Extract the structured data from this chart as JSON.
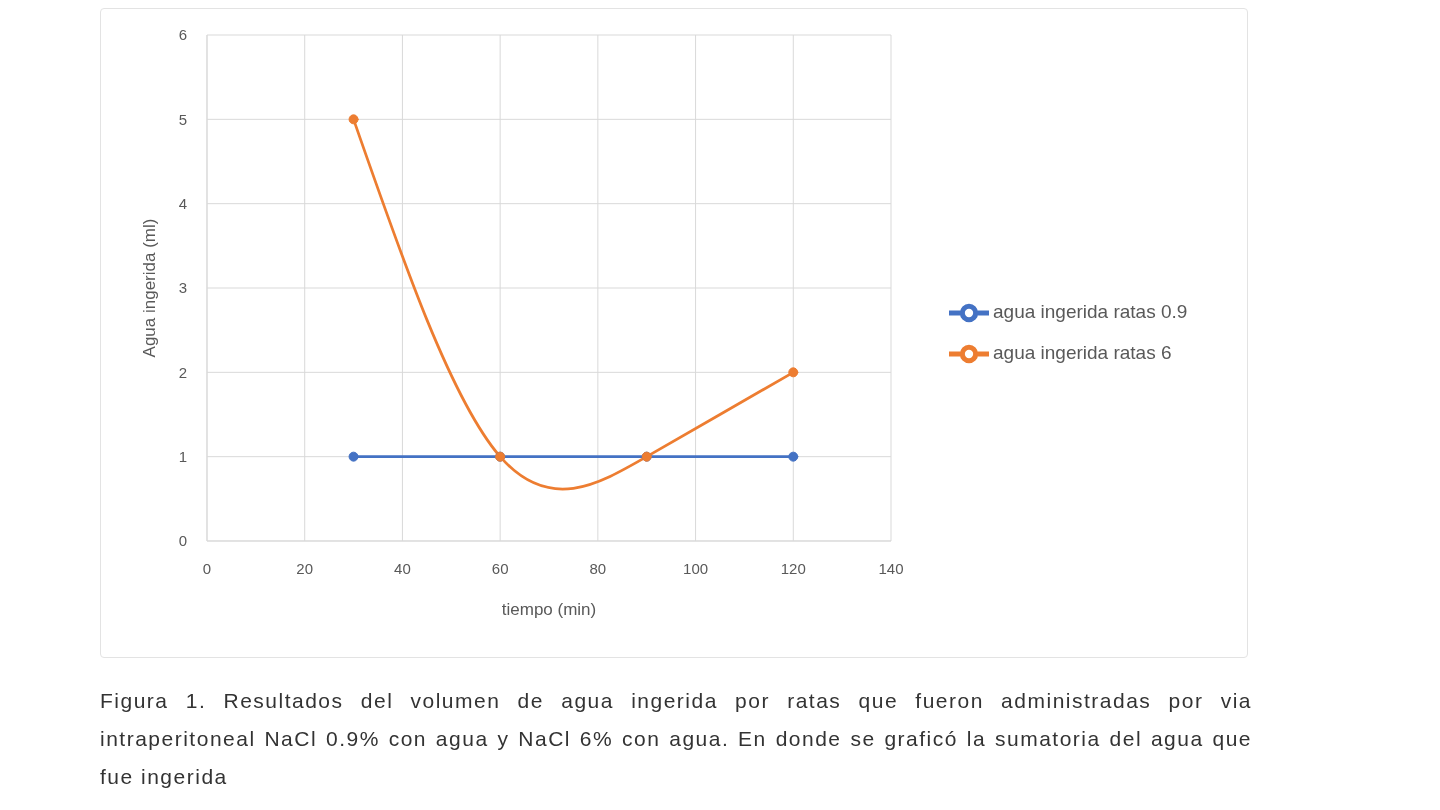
{
  "chart_data": {
    "type": "line",
    "x": [
      30,
      60,
      90,
      120
    ],
    "series": [
      {
        "name": "agua ingerida ratas 0.9",
        "color": "#4472c4",
        "values": [
          1,
          1,
          1,
          1
        ]
      },
      {
        "name": "agua ingerida ratas 6",
        "color": "#ed7d31",
        "values": [
          5,
          1,
          1,
          2
        ]
      }
    ],
    "xlabel": "tiempo (min)",
    "ylabel": "Agua ingerida (ml)",
    "xlim": [
      0,
      140
    ],
    "xticks": [
      0,
      20,
      40,
      60,
      80,
      100,
      120,
      140
    ],
    "ylim": [
      0,
      6
    ],
    "yticks": [
      0,
      1,
      2,
      3,
      4,
      5,
      6
    ],
    "grid": true,
    "legend": "right",
    "marker": "circle",
    "line_style": "solid",
    "annotations": [
      "Figura 1. Resultados del volumen de agua ingerida por ratas que fueron administradas por via intraperitoneal NaCl 0.9% con agua y NaCl 6% con agua. En donde se graficó la sumatoria del agua que fue ingerida"
    ]
  }
}
